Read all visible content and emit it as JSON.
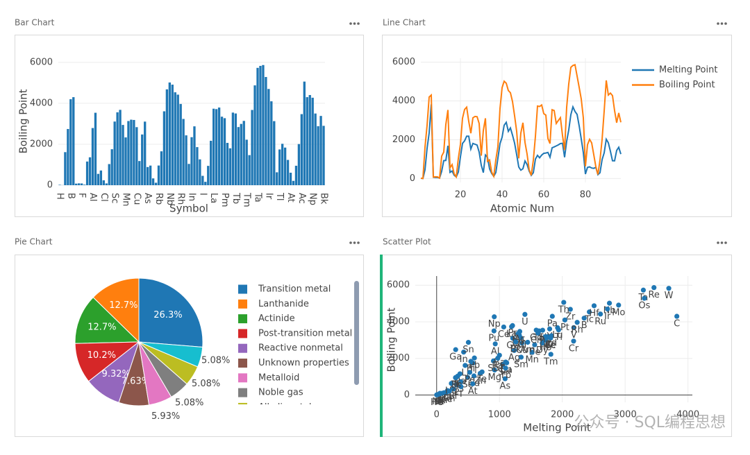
{
  "chart_data": [
    {
      "type": "bar",
      "title": "Bar Chart",
      "x_label": "Symbol",
      "y_label": "Boiling Point",
      "color": "#1f77b4",
      "categories": [
        "H",
        null,
        null,
        null,
        "B",
        null,
        null,
        null,
        "F",
        null,
        null,
        null,
        "Al",
        null,
        null,
        null,
        "Cl",
        null,
        null,
        null,
        "Sc",
        null,
        null,
        null,
        "Mn",
        null,
        null,
        null,
        "Cu",
        null,
        null,
        null,
        "As",
        null,
        null,
        null,
        "Rb",
        null,
        null,
        null,
        "Nb",
        null,
        null,
        null,
        "Rh",
        null,
        null,
        null,
        "In",
        null,
        null,
        null,
        "I",
        null,
        null,
        null,
        "La",
        null,
        null,
        null,
        "Pm",
        null,
        null,
        null,
        "Tb",
        null,
        null,
        null,
        "Tm",
        null,
        null,
        null,
        "Ta",
        null,
        null,
        null,
        "Ir",
        null,
        null,
        null,
        "Tl",
        null,
        null,
        null,
        "At",
        null,
        null,
        null,
        "Ac",
        null,
        null,
        null,
        "Np",
        null,
        null,
        null,
        "Bk"
      ],
      "values": [
        20,
        4,
        1615,
        2745,
        4200,
        4300,
        77,
        90,
        85,
        27,
        1156,
        1363,
        2792,
        3538,
        553,
        718,
        239,
        87,
        1032,
        1757,
        3109,
        3560,
        3680,
        2944,
        2334,
        3134,
        3200,
        3186,
        2835,
        1180,
        2477,
        3106,
        887,
        958,
        332,
        120,
        961,
        1655,
        3609,
        4682,
        5017,
        4912,
        4538,
        4423,
        3968,
        3236,
        2435,
        1040,
        2345,
        2875,
        1860,
        1261,
        457,
        165,
        944,
        2170,
        3737,
        3716,
        3793,
        3347,
        3273,
        2067,
        1802,
        3546,
        3503,
        2840,
        2993,
        3141,
        2223,
        1469,
        3675,
        4876,
        5731,
        5828,
        5869,
        5285,
        4701,
        4098,
        3129,
        630,
        1746,
        2022,
        1837,
        1235,
        610,
        211,
        950,
        2010,
        3471,
        5061,
        4300,
        4404,
        4273,
        3501,
        2880,
        3383,
        2900
      ],
      "ylim": [
        0,
        6200
      ],
      "yticks": [
        0,
        2000,
        4000,
        6000
      ],
      "grid": true
    },
    {
      "type": "line",
      "title": "Line Chart",
      "x_label": "Atomic Num",
      "x": [
        1,
        2,
        3,
        4,
        5,
        6,
        7,
        8,
        9,
        10,
        11,
        12,
        13,
        14,
        15,
        16,
        17,
        18,
        19,
        20,
        21,
        22,
        23,
        24,
        25,
        26,
        27,
        28,
        29,
        30,
        31,
        32,
        33,
        34,
        35,
        36,
        37,
        38,
        39,
        40,
        41,
        42,
        43,
        44,
        45,
        46,
        47,
        48,
        49,
        50,
        51,
        52,
        53,
        54,
        55,
        56,
        57,
        58,
        59,
        60,
        61,
        62,
        63,
        64,
        65,
        66,
        67,
        68,
        69,
        70,
        71,
        72,
        73,
        74,
        75,
        76,
        77,
        78,
        79,
        80,
        81,
        82,
        83,
        84,
        85,
        86,
        87,
        88,
        89,
        90,
        91,
        92,
        93,
        94,
        95,
        96,
        97
      ],
      "series": [
        {
          "name": "Melting Point",
          "color": "#1f77b4",
          "values": [
            14,
            1,
            454,
            1560,
            2348,
            3823,
            63,
            54,
            53,
            25,
            371,
            923,
            933,
            1687,
            317,
            388,
            172,
            84,
            337,
            1115,
            1814,
            1941,
            2183,
            2180,
            1519,
            1811,
            1768,
            1728,
            1358,
            693,
            303,
            1211,
            1090,
            494,
            266,
            116,
            312,
            1050,
            1799,
            2128,
            2750,
            2896,
            2430,
            2607,
            2237,
            1828,
            1235,
            594,
            430,
            505,
            904,
            723,
            387,
            161,
            302,
            1000,
            1193,
            1068,
            1208,
            1297,
            1315,
            1345,
            1099,
            1585,
            1629,
            1680,
            1734,
            1802,
            1818,
            1097,
            1925,
            2506,
            3290,
            3695,
            3459,
            3306,
            2719,
            2041,
            1337,
            234,
            577,
            601,
            544,
            527,
            575,
            202,
            300,
            973,
            1323,
            2023,
            1841,
            1405,
            917,
            913,
            1449,
            1613,
            1259
          ]
        },
        {
          "name": "Boiling Point",
          "color": "#ff7f0e",
          "values": [
            20,
            4,
            1615,
            2745,
            4200,
            4300,
            77,
            90,
            85,
            27,
            1156,
            1363,
            2792,
            3538,
            553,
            718,
            239,
            87,
            1032,
            1757,
            3109,
            3560,
            3680,
            2944,
            2334,
            3134,
            3200,
            3186,
            2835,
            1180,
            2477,
            3106,
            887,
            958,
            332,
            120,
            961,
            1655,
            3609,
            4682,
            5017,
            4912,
            4538,
            4423,
            3968,
            3236,
            2435,
            1040,
            2345,
            2875,
            1860,
            1261,
            457,
            165,
            944,
            2170,
            3737,
            3716,
            3793,
            3347,
            3273,
            2067,
            1802,
            3546,
            3503,
            2840,
            2993,
            3141,
            2223,
            1469,
            3675,
            4876,
            5731,
            5828,
            5869,
            5285,
            4701,
            4098,
            3129,
            630,
            1746,
            2022,
            1837,
            1235,
            610,
            211,
            950,
            2010,
            3471,
            5061,
            4300,
            4404,
            4273,
            3501,
            2880,
            3383,
            2900
          ]
        }
      ],
      "xlim": [
        1,
        97
      ],
      "xticks": [
        20,
        40,
        60,
        80
      ],
      "ylim": [
        -200,
        6200
      ],
      "yticks": [
        0,
        2000,
        4000,
        6000
      ],
      "grid": true
    },
    {
      "type": "pie",
      "title": "Pie Chart",
      "categories": [
        "Transition metal",
        "Lanthanide",
        "Actinide",
        "Post-transition metal",
        "Reactive nonmetal",
        "Unknown properties",
        "Metalloid",
        "Noble gas",
        "Alkali metal",
        null
      ],
      "values": [
        26.3,
        12.7,
        12.7,
        10.2,
        9.32,
        7.63,
        5.93,
        5.08,
        5.08,
        5.08
      ],
      "value_labels": [
        "26.3%",
        "12.7%",
        "12.7%",
        "10.2%",
        "9.32%",
        "7.63%",
        "5.93%",
        "5.08%",
        "5.08%",
        "5.08%"
      ],
      "colors": [
        "#1f77b4",
        "#ff7f0e",
        "#2ca02c",
        "#d62728",
        "#9467bd",
        "#8c564b",
        "#e377c2",
        "#7f7f7f",
        "#bcbd22",
        "#17becf"
      ]
    },
    {
      "type": "scatter",
      "title": "Scatter Plot",
      "x_label": "Melting Point",
      "y_label": "Boiling Point",
      "color": "#1f77b4",
      "x": [
        14,
        1,
        454,
        1560,
        2348,
        3823,
        63,
        54,
        53,
        25,
        371,
        923,
        933,
        1687,
        317,
        388,
        172,
        84,
        337,
        1115,
        1814,
        1941,
        2183,
        2180,
        1519,
        1811,
        1768,
        1728,
        1358,
        693,
        303,
        1211,
        1090,
        494,
        266,
        116,
        312,
        1050,
        1799,
        2128,
        2750,
        2896,
        2430,
        2607,
        2237,
        1828,
        1235,
        594,
        430,
        505,
        904,
        723,
        387,
        161,
        302,
        1000,
        1193,
        1068,
        1208,
        1297,
        1315,
        1345,
        1099,
        1585,
        1629,
        1680,
        1734,
        1802,
        1818,
        1097,
        1925,
        2506,
        3290,
        3695,
        3459,
        3306,
        2719,
        2041,
        1337,
        234,
        577,
        601,
        544,
        527,
        575,
        202,
        300,
        973,
        1323,
        2023,
        1841,
        1405,
        917,
        913,
        1449,
        1613,
        1259
      ],
      "values": [
        20,
        4,
        1615,
        2745,
        4200,
        4300,
        77,
        90,
        85,
        27,
        1156,
        1363,
        2792,
        3538,
        553,
        718,
        239,
        87,
        1032,
        1757,
        3109,
        3560,
        3680,
        2944,
        2334,
        3134,
        3200,
        3186,
        2835,
        1180,
        2477,
        3106,
        887,
        958,
        332,
        120,
        961,
        1655,
        3609,
        4682,
        5017,
        4912,
        4538,
        4423,
        3968,
        3236,
        2435,
        1040,
        2345,
        2875,
        1860,
        1261,
        457,
        165,
        944,
        2170,
        3737,
        3716,
        3793,
        3347,
        3273,
        2067,
        1802,
        3546,
        3503,
        2840,
        2993,
        3141,
        2223,
        1469,
        3675,
        4876,
        5731,
        5828,
        5869,
        5285,
        4701,
        4098,
        3129,
        630,
        1746,
        2022,
        1837,
        1235,
        610,
        211,
        950,
        2010,
        3471,
        5061,
        4300,
        4404,
        4273,
        3501,
        2880,
        3383,
        2900
      ],
      "labels": [
        "H",
        "He",
        "Li",
        "Be",
        "B",
        "C",
        "N",
        "O",
        "F",
        "Ne",
        "Na",
        "Mg",
        "Al",
        "Si",
        "P",
        "S",
        "Cl",
        "Ar",
        "K",
        "Ca",
        "Sc",
        "Ti",
        "V",
        "Cr",
        "Mn",
        "Fe",
        "Co",
        "Ni",
        "Cu",
        "Zn",
        "Ga",
        "Ge",
        "As",
        "Se",
        "Br",
        "Kr",
        "Rb",
        "Sr",
        "Y",
        "Zr",
        "Nb",
        "Mo",
        "Tc",
        "Ru",
        "Rh",
        "Pd",
        "Ag",
        "Cd",
        "In",
        "Sn",
        "Sb",
        "Te",
        "I",
        "Xe",
        "Cs",
        "Ba",
        "La",
        "Ce",
        "Pr",
        "Nd",
        "Pm",
        "Sm",
        "Eu",
        "Gd",
        "Tb",
        "Dy",
        "Ho",
        "Er",
        "Tm",
        "Yb",
        "Lu",
        "Hf",
        "Ta",
        "W",
        "Re",
        "Os",
        "Ir",
        "Pt",
        "Au",
        "Hg",
        "Tl",
        "Pb",
        "Bi",
        "Po",
        "At",
        "Rn",
        "Fr",
        "Ra",
        "Ac",
        "Th",
        "Pa",
        "U",
        "Np",
        "Pu",
        "Am",
        "Cm",
        "Bk"
      ],
      "xlim": [
        -340,
        4070
      ],
      "xticks": [
        0,
        1000,
        2000,
        3000,
        4000
      ],
      "ylim": [
        -400,
        6500
      ],
      "yticks": [
        0,
        2000,
        4000,
        6000
      ],
      "grid": true
    }
  ],
  "watermark": "公众号 · SQL编程思想"
}
